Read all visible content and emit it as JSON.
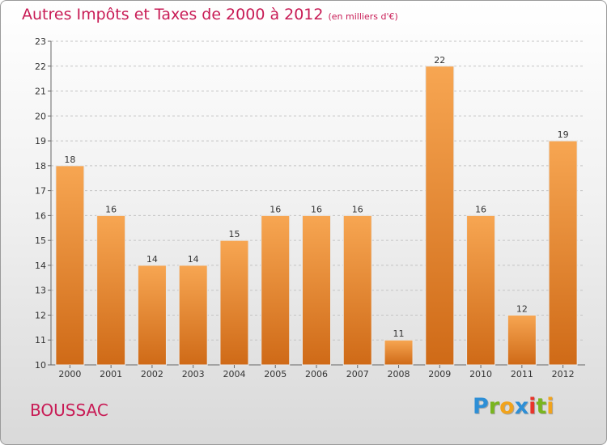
{
  "title": "Autres Impôts et Taxes de 2000 à 2012",
  "subtitle": "(en milliers d'€)",
  "commune": "BOUSSAC",
  "logo": {
    "letters": [
      {
        "ch": "P",
        "color": "#2e8fd6"
      },
      {
        "ch": "r",
        "color": "#79b51f"
      },
      {
        "ch": "o",
        "color": "#f1a31c"
      },
      {
        "ch": "x",
        "color": "#2e8fd6"
      },
      {
        "ch": "i",
        "color": "#e8342a"
      },
      {
        "ch": "t",
        "color": "#79b51f"
      },
      {
        "ch": "i",
        "color": "#f1a31c"
      }
    ]
  },
  "colors": {
    "bar_top": "#f7a652",
    "bar_bottom": "#cf6a17",
    "title": "#c81b55",
    "grid": "#c4c4c4"
  },
  "chart_data": {
    "type": "bar",
    "categories": [
      "2000",
      "2001",
      "2002",
      "2003",
      "2004",
      "2005",
      "2006",
      "2007",
      "2008",
      "2009",
      "2010",
      "2011",
      "2012"
    ],
    "values": [
      18,
      16,
      14,
      14,
      15,
      16,
      16,
      16,
      11,
      22,
      16,
      12,
      19
    ],
    "ylim": [
      10,
      23
    ],
    "yticks": [
      10,
      11,
      12,
      13,
      14,
      15,
      16,
      17,
      18,
      19,
      20,
      21,
      22,
      23
    ],
    "grid": true,
    "legend": "none"
  }
}
